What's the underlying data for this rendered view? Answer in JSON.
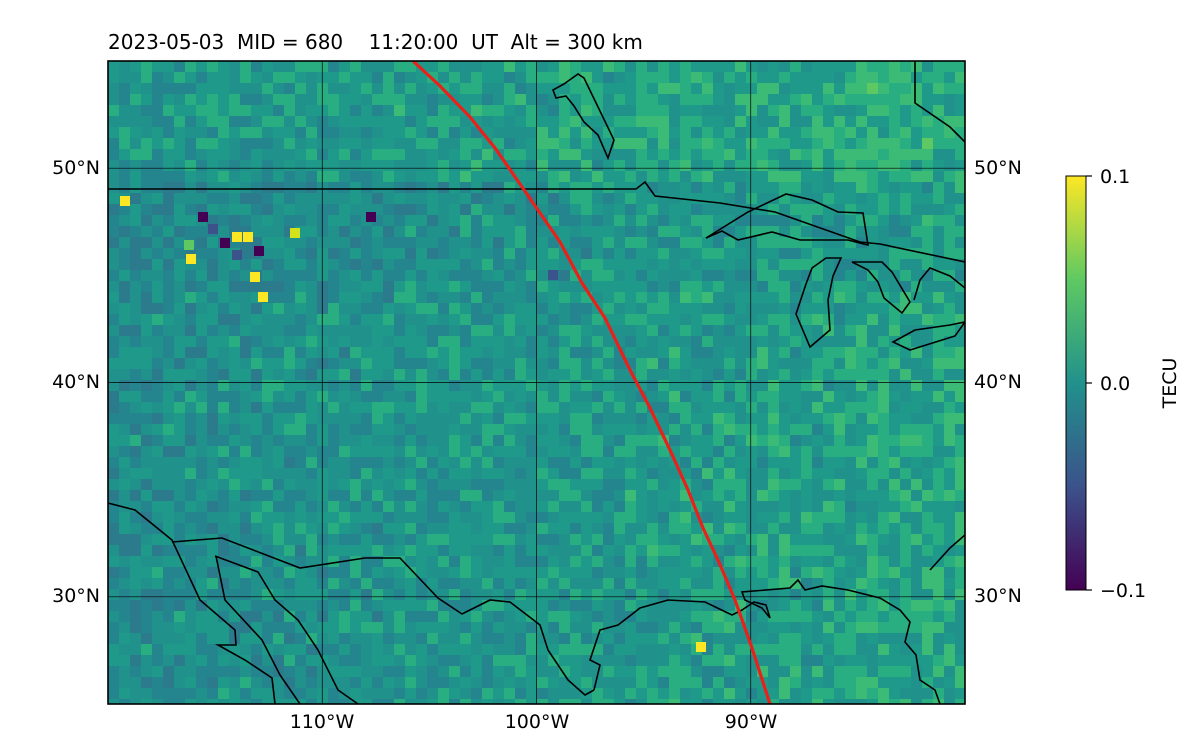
{
  "title": "2023-05-03  MID = 680    11:20:00  UT  Alt = 300 km",
  "map": {
    "lon_range": [
      -120,
      -80
    ],
    "lat_range": [
      25,
      55
    ],
    "lon_ticks": [
      {
        "value": -110,
        "label": "110°W"
      },
      {
        "value": -100,
        "label": "100°W"
      },
      {
        "value": -90,
        "label": "90°W"
      }
    ],
    "lat_ticks": [
      {
        "value": 50,
        "label": "50°N"
      },
      {
        "value": 40,
        "label": "40°N"
      },
      {
        "value": 30,
        "label": "30°N"
      }
    ],
    "gridlines": true,
    "coastlines": true,
    "track_color": "#e8211b"
  },
  "colorbar": {
    "label": "TECU",
    "min": -0.1,
    "max": 0.1,
    "tick_labels": [
      "0.1",
      "0.0",
      "−0.1"
    ],
    "colormap": "viridis",
    "colors": [
      "#440154",
      "#3b528b",
      "#21918c",
      "#5ec962",
      "#fde725"
    ]
  }
}
